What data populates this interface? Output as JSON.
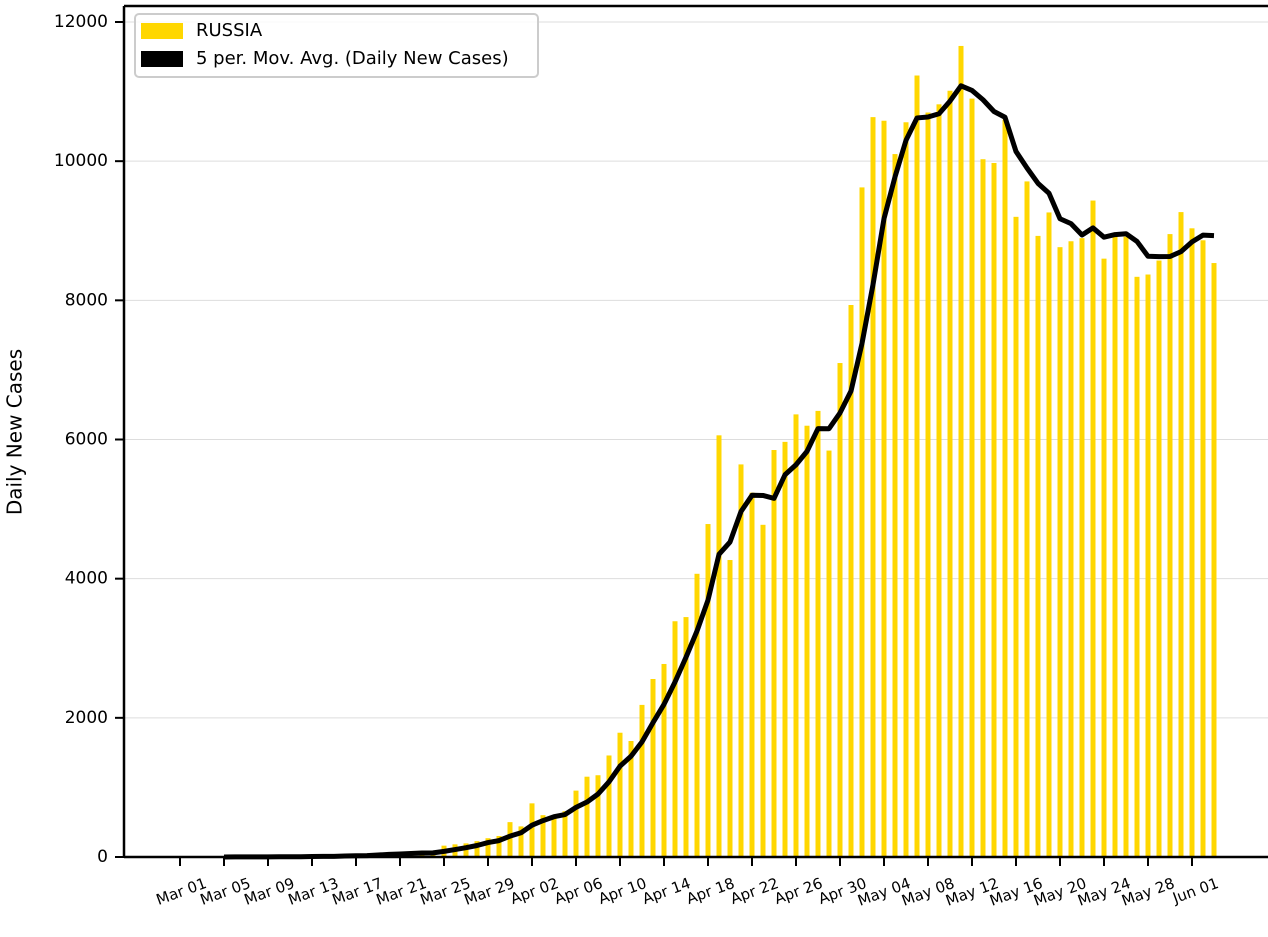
{
  "chart_data": {
    "type": "bar",
    "ylabel": "Daily New Cases",
    "categories": [
      "Mar 01",
      null,
      null,
      null,
      "Mar 05",
      null,
      null,
      null,
      "Mar 09",
      null,
      null,
      null,
      "Mar 13",
      null,
      null,
      null,
      "Mar 17",
      null,
      null,
      null,
      "Mar 21",
      null,
      null,
      null,
      "Mar 25",
      null,
      null,
      null,
      "Mar 29",
      null,
      null,
      null,
      "Apr 02",
      null,
      null,
      null,
      "Apr 06",
      null,
      null,
      null,
      "Apr 10",
      null,
      null,
      null,
      "Apr 14",
      null,
      null,
      null,
      "Apr 18",
      null,
      null,
      null,
      "Apr 22",
      null,
      null,
      null,
      "Apr 26",
      null,
      null,
      null,
      "Apr 30",
      null,
      null,
      null,
      "May 04",
      null,
      null,
      null,
      "May 08",
      null,
      null,
      null,
      "May 12",
      null,
      null,
      null,
      "May 16",
      null,
      null,
      null,
      "May 20",
      null,
      null,
      null,
      "May 24",
      null,
      null,
      null,
      "May 28",
      null,
      null,
      null,
      "Jun 01",
      null,
      null
    ],
    "series": [
      {
        "name": "RUSSIA",
        "type": "bar",
        "color": "#ffd700",
        "values": [
          0,
          1,
          0,
          0,
          1,
          6,
          2,
          3,
          0,
          3,
          8,
          6,
          17,
          14,
          4,
          30,
          21,
          33,
          52,
          54,
          53,
          61,
          71,
          57,
          163,
          182,
          196,
          228,
          270,
          302,
          501,
          440,
          771,
          601,
          582,
          658,
          954,
          1154,
          1175,
          1459,
          1786,
          1667,
          2186,
          2558,
          2774,
          3388,
          3448,
          4070,
          4785,
          6060,
          4268,
          5642,
          5236,
          4774,
          5849,
          5966,
          6361,
          6198,
          6411,
          5841,
          7099,
          7933,
          9623,
          10633,
          10581,
          10102,
          10559,
          11231,
          10699,
          10817,
          11012,
          11656,
          10899,
          10028,
          9974,
          10598,
          9200,
          9709,
          8926,
          9263,
          8764,
          8849,
          8894,
          9434,
          8599,
          8946,
          8915,
          8338,
          8371,
          8572,
          8952,
          9268,
          9035,
          8863,
          8536
        ]
      },
      {
        "name": "5 per. Mov. Avg. (Daily New Cases)",
        "type": "line",
        "color": "#000000",
        "values": [
          null,
          null,
          null,
          null,
          0.4,
          1.6,
          1.8,
          2.4,
          2.4,
          2.8,
          3.2,
          4,
          6.8,
          9.6,
          9.8,
          14.2,
          17.2,
          20.4,
          28,
          38,
          42.6,
          50.6,
          58.2,
          59.2,
          81,
          106.8,
          133.8,
          165.2,
          207.8,
          235.6,
          299.4,
          348.2,
          456.8,
          523,
          579,
          610.4,
          713.2,
          789.8,
          904.6,
          1080,
          1305.6,
          1448.2,
          1654.6,
          1931.2,
          2194.2,
          2514.6,
          2870.8,
          3247.6,
          3693,
          4350.2,
          4526.2,
          4965,
          5198.2,
          5196,
          5153.8,
          5493.4,
          5637.2,
          5829.6,
          6157,
          6155.4,
          6382,
          6696.4,
          7381.4,
          8225.8,
          9173.8,
          9774.4,
          10299.6,
          10621.2,
          10634.4,
          10681.6,
          10863.6,
          11083,
          11016.6,
          10882.4,
          10713.8,
          10631,
          10139.8,
          9901.8,
          9681.4,
          9539.2,
          9172.4,
          9102.2,
          8939.2,
          9040.8,
          8908,
          8944.4,
          8957.6,
          8846.4,
          8633.8,
          8628.4,
          8629.6,
          8700.2,
          8839.6,
          8938,
          8930.8
        ]
      }
    ],
    "ylim": [
      0,
      12230
    ],
    "yticks": [
      0,
      2000,
      4000,
      6000,
      8000,
      10000,
      12000
    ],
    "grid": true,
    "legend": "upper left"
  }
}
